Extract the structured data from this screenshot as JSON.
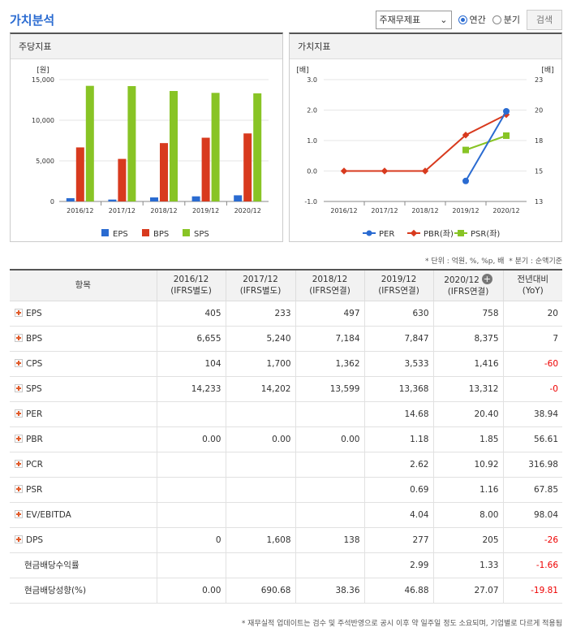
{
  "header": {
    "title": "가치분석",
    "select_value": "주재무제표",
    "radio_annual": "연간",
    "radio_quarter": "분기",
    "search_label": "검색"
  },
  "panels": {
    "left_title": "주당지표",
    "right_title": "가치지표"
  },
  "chart_data": [
    {
      "type": "bar",
      "categories": [
        "2016/12",
        "2017/12",
        "2018/12",
        "2019/12",
        "2020/12"
      ],
      "series": [
        {
          "name": "EPS",
          "values": [
            405,
            233,
            497,
            630,
            758
          ],
          "color": "#2a6bd1"
        },
        {
          "name": "BPS",
          "values": [
            6655,
            5240,
            7184,
            7847,
            8375
          ],
          "color": "#d83a1e"
        },
        {
          "name": "SPS",
          "values": [
            14233,
            14202,
            13599,
            13368,
            13312
          ],
          "color": "#88c425"
        }
      ],
      "ylabel": "[원]",
      "ylim": [
        0,
        15000
      ],
      "yticks": [
        "15,000",
        "10,000",
        "5,000",
        "0"
      ],
      "legend": "bottom"
    },
    {
      "type": "line",
      "categories": [
        "2016/12",
        "2017/12",
        "2018/12",
        "2019/12",
        "2020/12"
      ],
      "series": [
        {
          "name": "PER",
          "values": [
            null,
            null,
            null,
            14.68,
            20.4
          ],
          "axis": "right",
          "color": "#2a6bd1"
        },
        {
          "name": "PBR(좌)",
          "values": [
            0.0,
            0.0,
            0.0,
            1.18,
            1.85
          ],
          "axis": "left",
          "color": "#d83a1e"
        },
        {
          "name": "PSR(좌)",
          "values": [
            null,
            null,
            null,
            0.69,
            1.16
          ],
          "axis": "left",
          "color": "#88c425"
        }
      ],
      "ylabel_left": "[배]",
      "ylabel_right": "[배]",
      "ylim_left": [
        -1.0,
        3.0
      ],
      "ylim_right": [
        13,
        23
      ],
      "yticks_left": [
        "3.0",
        "2.0",
        "1.0",
        "0.0",
        "-1.0"
      ],
      "yticks_right": [
        "23",
        "20",
        "18",
        "15",
        "13"
      ],
      "legend": "bottom"
    }
  ],
  "notes": {
    "unit": "* 단위 : 억원, %, %p, 배",
    "quarter": "* 분기 : 순액기준",
    "footer": "* 재무실적 업데이트는 검수 및 주석반영으로 공시 이후 약 일주일 정도 소요되며, 기업별로 다르게 적용됨"
  },
  "table": {
    "headers": [
      [
        "항목"
      ],
      [
        "2016/12",
        "(IFRS별도)"
      ],
      [
        "2017/12",
        "(IFRS별도)"
      ],
      [
        "2018/12",
        "(IFRS연결)"
      ],
      [
        "2019/12",
        "(IFRS연결)"
      ],
      [
        "2020/12",
        "(IFRS연결)"
      ],
      [
        "전년대비",
        "(YoY)"
      ]
    ],
    "rows": [
      {
        "label": "EPS",
        "plus": true,
        "values": [
          "405",
          "233",
          "497",
          "630",
          "758",
          "20"
        ]
      },
      {
        "label": "BPS",
        "plus": true,
        "values": [
          "6,655",
          "5,240",
          "7,184",
          "7,847",
          "8,375",
          "7"
        ]
      },
      {
        "label": "CPS",
        "plus": true,
        "values": [
          "104",
          "1,700",
          "1,362",
          "3,533",
          "1,416",
          "-60"
        ]
      },
      {
        "label": "SPS",
        "plus": true,
        "values": [
          "14,233",
          "14,202",
          "13,599",
          "13,368",
          "13,312",
          "-0"
        ]
      },
      {
        "label": "PER",
        "plus": true,
        "values": [
          "",
          "",
          "",
          "14.68",
          "20.40",
          "38.94"
        ]
      },
      {
        "label": "PBR",
        "plus": true,
        "values": [
          "0.00",
          "0.00",
          "0.00",
          "1.18",
          "1.85",
          "56.61"
        ]
      },
      {
        "label": "PCR",
        "plus": true,
        "values": [
          "",
          "",
          "",
          "2.62",
          "10.92",
          "316.98"
        ]
      },
      {
        "label": "PSR",
        "plus": true,
        "values": [
          "",
          "",
          "",
          "0.69",
          "1.16",
          "67.85"
        ]
      },
      {
        "label": "EV/EBITDA",
        "plus": true,
        "values": [
          "",
          "",
          "",
          "4.04",
          "8.00",
          "98.04"
        ]
      },
      {
        "label": "DPS",
        "plus": true,
        "values": [
          "0",
          "1,608",
          "138",
          "277",
          "205",
          "-26"
        ]
      },
      {
        "label": "현금배당수익률",
        "plus": false,
        "values": [
          "",
          "",
          "",
          "2.99",
          "1.33",
          "-1.66"
        ]
      },
      {
        "label": "현금배당성향(%)",
        "plus": false,
        "values": [
          "0.00",
          "690.68",
          "38.36",
          "46.88",
          "27.07",
          "-19.81"
        ]
      }
    ]
  }
}
